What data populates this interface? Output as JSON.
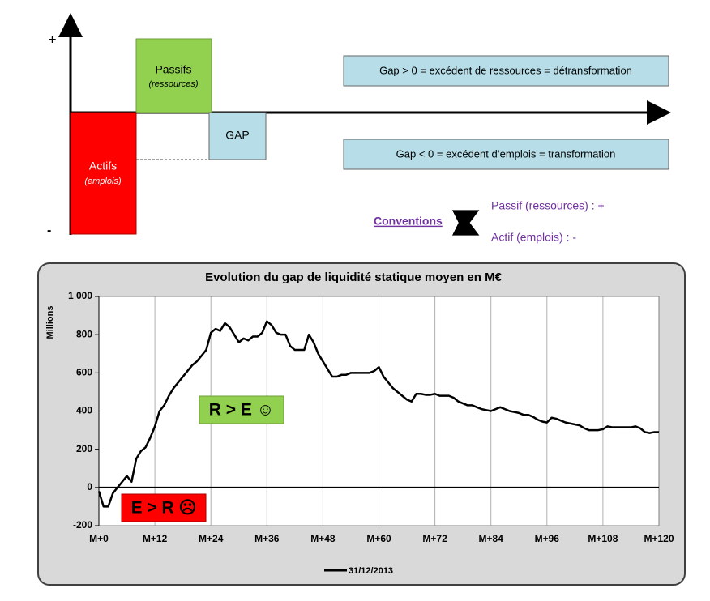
{
  "diagram": {
    "plus": "+",
    "minus": "-",
    "passifs": "Passifs",
    "passifs_sub": "(ressources)",
    "actifs": "Actifs",
    "actifs_sub": "(emplois)",
    "gap": "GAP",
    "gap_pos": "Gap > 0 = excédent de ressources = détransformation",
    "gap_neg": "Gap < 0 = excédent d’emplois = transformation",
    "conventions": "Conventions",
    "conv_passif": "Passif (ressources) : +",
    "conv_actif": "Actif (emplois) : -"
  },
  "chart_data": {
    "type": "line",
    "title": "Evolution du gap de liquidité statique moyen en M€",
    "y_label": "Millions",
    "annotations": [
      "R > E ☺",
      "E > R ☹"
    ],
    "xlim": [
      0,
      120
    ],
    "ylim": [
      -200,
      1000
    ],
    "xticks": [
      {
        "value": 0,
        "label": "M+0"
      },
      {
        "value": 12,
        "label": "M+12"
      },
      {
        "value": 24,
        "label": "M+24"
      },
      {
        "value": 36,
        "label": "M+36"
      },
      {
        "value": 48,
        "label": "M+48"
      },
      {
        "value": 60,
        "label": "M+60"
      },
      {
        "value": 72,
        "label": "M+72"
      },
      {
        "value": 84,
        "label": "M+84"
      },
      {
        "value": 96,
        "label": "M+96"
      },
      {
        "value": 108,
        "label": "M+108"
      },
      {
        "value": 120,
        "label": "M+120"
      }
    ],
    "yticks": [
      -200,
      0,
      200,
      400,
      600,
      800,
      {
        "value": 1000,
        "label": "1 000"
      }
    ],
    "grid": true,
    "x": [
      0,
      1,
      2,
      3,
      4,
      5,
      6,
      7,
      8,
      9,
      10,
      11,
      12,
      13,
      14,
      15,
      16,
      17,
      18,
      19,
      20,
      21,
      22,
      23,
      24,
      25,
      26,
      27,
      28,
      29,
      30,
      31,
      32,
      33,
      34,
      35,
      36,
      37,
      38,
      39,
      40,
      41,
      42,
      43,
      44,
      45,
      46,
      47,
      48,
      49,
      50,
      51,
      52,
      53,
      54,
      55,
      56,
      57,
      58,
      59,
      60,
      61,
      62,
      63,
      64,
      65,
      66,
      67,
      68,
      69,
      70,
      71,
      72,
      73,
      74,
      75,
      76,
      77,
      78,
      79,
      80,
      81,
      82,
      83,
      84,
      85,
      86,
      87,
      88,
      89,
      90,
      91,
      92,
      93,
      94,
      95,
      96,
      97,
      98,
      99,
      100,
      101,
      102,
      103,
      104,
      105,
      106,
      107,
      108,
      109,
      110,
      111,
      112,
      113,
      114,
      115,
      116,
      117,
      118,
      119,
      120
    ],
    "series": [
      {
        "name": "31/12/2013",
        "color": "#000000",
        "values": [
          -20,
          -100,
          -100,
          -30,
          0,
          30,
          60,
          30,
          150,
          190,
          210,
          260,
          320,
          400,
          430,
          480,
          520,
          550,
          580,
          610,
          640,
          660,
          690,
          720,
          810,
          830,
          820,
          860,
          840,
          800,
          760,
          780,
          770,
          790,
          790,
          810,
          870,
          850,
          810,
          800,
          800,
          740,
          720,
          720,
          720,
          800,
          760,
          700,
          660,
          620,
          580,
          580,
          590,
          590,
          600,
          600,
          600,
          600,
          600,
          610,
          630,
          580,
          550,
          520,
          500,
          480,
          460,
          450,
          490,
          490,
          485,
          485,
          490,
          480,
          480,
          480,
          470,
          450,
          440,
          430,
          430,
          420,
          410,
          405,
          400,
          410,
          420,
          410,
          400,
          395,
          390,
          380,
          380,
          370,
          355,
          345,
          340,
          365,
          360,
          350,
          340,
          335,
          330,
          325,
          310,
          300,
          300,
          300,
          305,
          320,
          315,
          315,
          315,
          315,
          315,
          320,
          310,
          290,
          285,
          290,
          290
        ]
      }
    ]
  }
}
